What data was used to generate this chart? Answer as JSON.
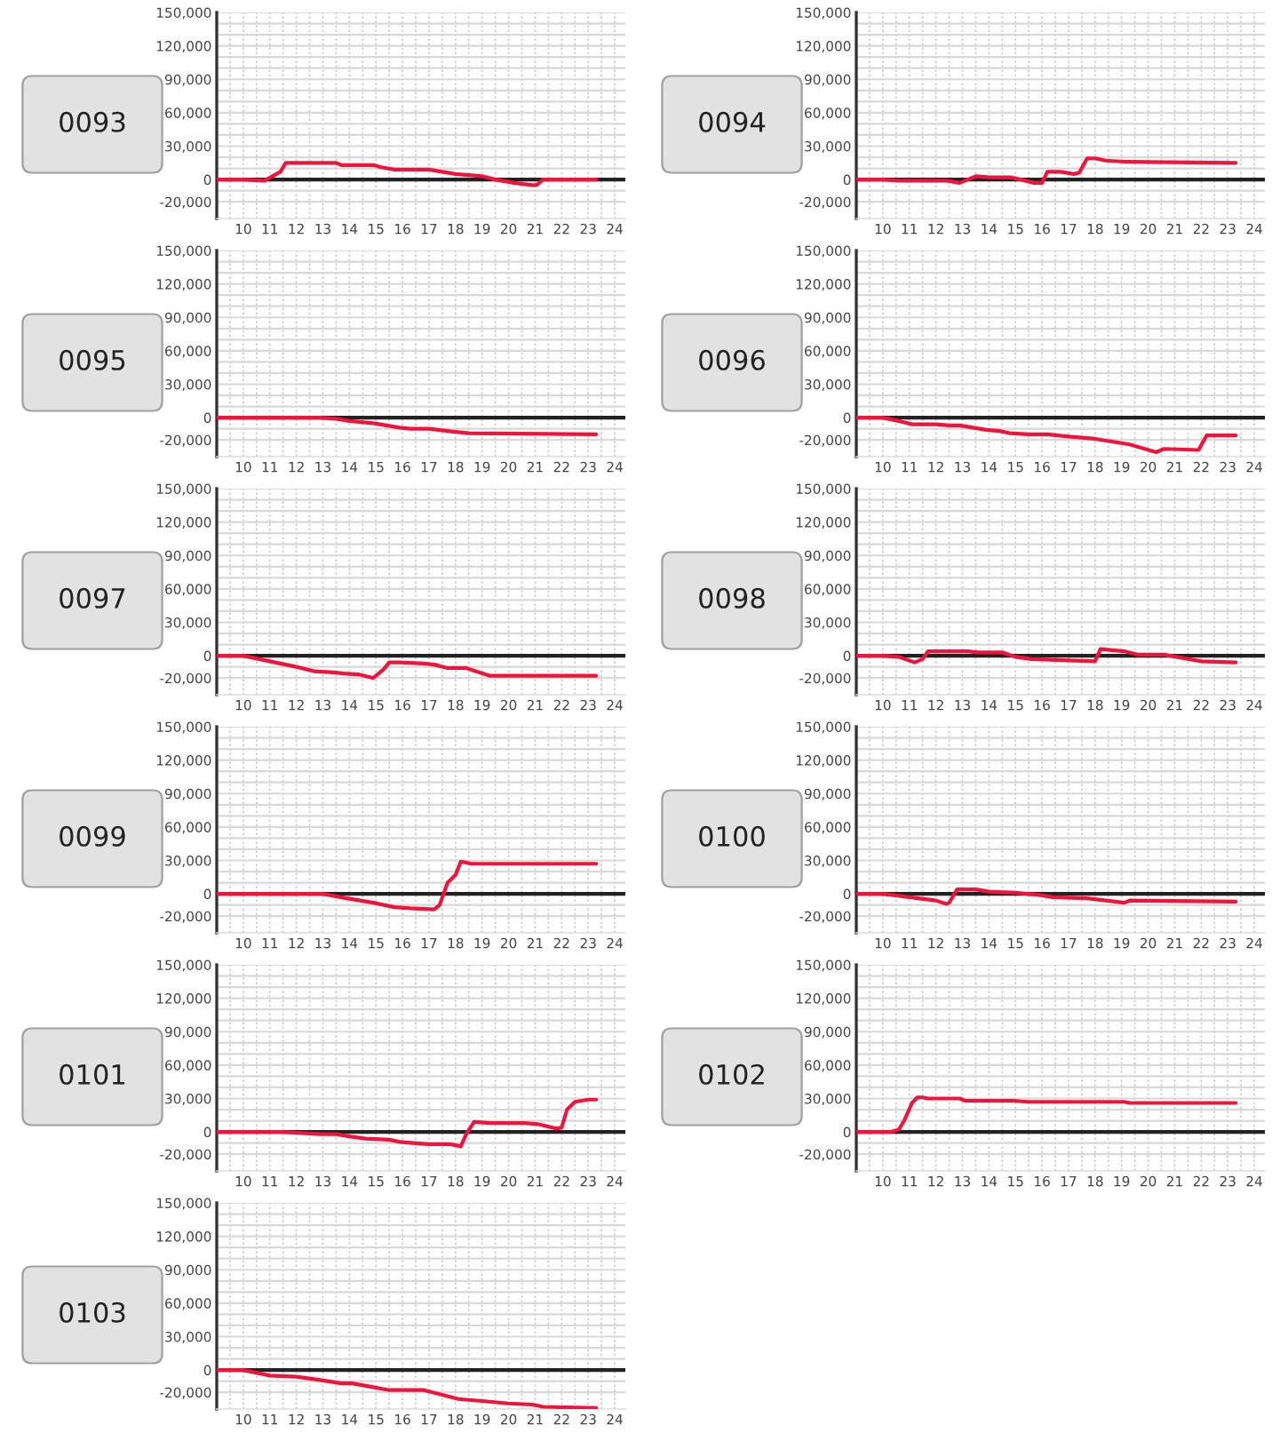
{
  "chart_data": [
    {
      "type": "line",
      "title": "0093",
      "x": [
        9,
        10,
        10.8,
        11.4,
        11.6,
        13.5,
        13.7,
        14.9,
        15.2,
        15.7,
        17,
        17.5,
        18,
        19,
        19.5,
        20.2,
        20.9,
        21.05,
        21.3,
        23.3
      ],
      "values": [
        0,
        0,
        -1000,
        7000,
        15000,
        15000,
        13000,
        13000,
        11000,
        9000,
        9000,
        7000,
        5000,
        3000,
        0,
        -3000,
        -5000,
        -5000,
        0,
        0
      ],
      "color": "#f0143c",
      "xlim": [
        9,
        24.4
      ],
      "xticks": [
        {
          "value": 9.5,
          "label": null
        },
        10,
        {
          "value": 10.5,
          "label": null
        },
        11,
        {
          "value": 11.5,
          "label": null
        },
        12,
        {
          "value": 12.5,
          "label": null
        },
        13,
        {
          "value": 13.5,
          "label": null
        },
        14,
        {
          "value": 14.5,
          "label": null
        },
        15,
        {
          "value": 15.5,
          "label": null
        },
        16,
        {
          "value": 16.5,
          "label": null
        },
        17,
        {
          "value": 17.5,
          "label": null
        },
        18,
        {
          "value": 18.5,
          "label": null
        },
        19,
        {
          "value": 19.5,
          "label": null
        },
        20,
        {
          "value": 20.5,
          "label": null
        },
        21,
        {
          "value": 21.5,
          "label": null
        },
        22,
        {
          "value": 22.5,
          "label": null
        },
        23,
        {
          "value": 23.5,
          "label": null
        },
        24
      ],
      "ylim": [
        -35000,
        150000
      ],
      "yticks": [
        {
          "value": -20000,
          "label": "-20,000"
        },
        {
          "value": -10000,
          "label": null
        },
        0,
        {
          "value": 10000,
          "label": null
        },
        {
          "value": 20000,
          "label": null
        },
        {
          "value": 30000,
          "label": "30,000"
        },
        {
          "value": 40000,
          "label": null
        },
        {
          "value": 50000,
          "label": null
        },
        {
          "value": 60000,
          "label": "60,000"
        },
        {
          "value": 70000,
          "label": null
        },
        {
          "value": 80000,
          "label": null
        },
        {
          "value": 90000,
          "label": "90,000"
        },
        {
          "value": 100000,
          "label": null
        },
        {
          "value": 110000,
          "label": null
        },
        {
          "value": 120000,
          "label": "120,000"
        },
        {
          "value": 130000,
          "label": null
        },
        {
          "value": 140000,
          "label": null
        },
        {
          "value": 150000,
          "label": "150,000"
        }
      ],
      "grid": true,
      "ref_lines": [
        {
          "axis": "y",
          "value": 0,
          "color": "#222222"
        }
      ]
    },
    {
      "type": "line",
      "title": "0094",
      "x": [
        9,
        10,
        10.6,
        12.4,
        12.9,
        13.5,
        14,
        14.8,
        15.2,
        15.7,
        16,
        16.2,
        16.7,
        17.2,
        17.4,
        17.7,
        18,
        18.4,
        19.1,
        23.3
      ],
      "values": [
        0,
        0,
        -1000,
        -1000,
        -3000,
        3000,
        2000,
        2000,
        0,
        -3000,
        -3000,
        7000,
        7000,
        5000,
        6000,
        19000,
        19000,
        17000,
        16000,
        15000
      ],
      "color": "#f0143c",
      "xlim": [
        9,
        24.4
      ],
      "xticks": [
        {
          "value": 9.5,
          "label": null
        },
        10,
        {
          "value": 10.5,
          "label": null
        },
        11,
        {
          "value": 11.5,
          "label": null
        },
        12,
        {
          "value": 12.5,
          "label": null
        },
        13,
        {
          "value": 13.5,
          "label": null
        },
        14,
        {
          "value": 14.5,
          "label": null
        },
        15,
        {
          "value": 15.5,
          "label": null
        },
        16,
        {
          "value": 16.5,
          "label": null
        },
        17,
        {
          "value": 17.5,
          "label": null
        },
        18,
        {
          "value": 18.5,
          "label": null
        },
        19,
        {
          "value": 19.5,
          "label": null
        },
        20,
        {
          "value": 20.5,
          "label": null
        },
        21,
        {
          "value": 21.5,
          "label": null
        },
        22,
        {
          "value": 22.5,
          "label": null
        },
        23,
        {
          "value": 23.5,
          "label": null
        },
        24
      ],
      "ylim": [
        -35000,
        150000
      ],
      "yticks": [
        {
          "value": -20000,
          "label": "-20,000"
        },
        {
          "value": -10000,
          "label": null
        },
        0,
        {
          "value": 10000,
          "label": null
        },
        {
          "value": 20000,
          "label": null
        },
        {
          "value": 30000,
          "label": "30,000"
        },
        {
          "value": 40000,
          "label": null
        },
        {
          "value": 50000,
          "label": null
        },
        {
          "value": 60000,
          "label": "60,000"
        },
        {
          "value": 70000,
          "label": null
        },
        {
          "value": 80000,
          "label": null
        },
        {
          "value": 90000,
          "label": "90,000"
        },
        {
          "value": 100000,
          "label": null
        },
        {
          "value": 110000,
          "label": null
        },
        {
          "value": 120000,
          "label": "120,000"
        },
        {
          "value": 130000,
          "label": null
        },
        {
          "value": 140000,
          "label": null
        },
        {
          "value": 150000,
          "label": "150,000"
        }
      ],
      "grid": true,
      "ref_lines": [
        {
          "axis": "y",
          "value": 0,
          "color": "#222222"
        }
      ]
    },
    {
      "type": "line",
      "title": "0095",
      "x": [
        9,
        10,
        11.2,
        12.9,
        13.5,
        14,
        14.9,
        15.9,
        16.3,
        17,
        17.7,
        18.5,
        23.3
      ],
      "values": [
        0,
        0,
        0,
        0,
        -1000,
        -3000,
        -5000,
        -9000,
        -10000,
        -10000,
        -12000,
        -14000,
        -15000
      ],
      "color": "#f0143c",
      "xlim": [
        9,
        24.4
      ],
      "xticks": [
        {
          "value": 9.5,
          "label": null
        },
        10,
        {
          "value": 10.5,
          "label": null
        },
        11,
        {
          "value": 11.5,
          "label": null
        },
        12,
        {
          "value": 12.5,
          "label": null
        },
        13,
        {
          "value": 13.5,
          "label": null
        },
        14,
        {
          "value": 14.5,
          "label": null
        },
        15,
        {
          "value": 15.5,
          "label": null
        },
        16,
        {
          "value": 16.5,
          "label": null
        },
        17,
        {
          "value": 17.5,
          "label": null
        },
        18,
        {
          "value": 18.5,
          "label": null
        },
        19,
        {
          "value": 19.5,
          "label": null
        },
        20,
        {
          "value": 20.5,
          "label": null
        },
        21,
        {
          "value": 21.5,
          "label": null
        },
        22,
        {
          "value": 22.5,
          "label": null
        },
        23,
        {
          "value": 23.5,
          "label": null
        },
        24
      ],
      "ylim": [
        -35000,
        150000
      ],
      "yticks": [
        {
          "value": -20000,
          "label": "-20,000"
        },
        {
          "value": -10000,
          "label": null
        },
        0,
        {
          "value": 10000,
          "label": null
        },
        {
          "value": 20000,
          "label": null
        },
        {
          "value": 30000,
          "label": "30,000"
        },
        {
          "value": 40000,
          "label": null
        },
        {
          "value": 50000,
          "label": null
        },
        {
          "value": 60000,
          "label": "60,000"
        },
        {
          "value": 70000,
          "label": null
        },
        {
          "value": 80000,
          "label": null
        },
        {
          "value": 90000,
          "label": "90,000"
        },
        {
          "value": 100000,
          "label": null
        },
        {
          "value": 110000,
          "label": null
        },
        {
          "value": 120000,
          "label": "120,000"
        },
        {
          "value": 130000,
          "label": null
        },
        {
          "value": 140000,
          "label": null
        },
        {
          "value": 150000,
          "label": "150,000"
        }
      ],
      "grid": true,
      "ref_lines": [
        {
          "axis": "y",
          "value": 0,
          "color": "#222222"
        }
      ]
    },
    {
      "type": "line",
      "title": "0096",
      "x": [
        9,
        10,
        10.6,
        11.1,
        12,
        12.5,
        12.9,
        13.9,
        14.4,
        14.8,
        15.5,
        16.2,
        16.6,
        17,
        17.5,
        18,
        19.3,
        20.3,
        20.6,
        21.9,
        22.2,
        23.3
      ],
      "values": [
        0,
        0,
        -3000,
        -6000,
        -6000,
        -7000,
        -7000,
        -11000,
        -12000,
        -14000,
        -15000,
        -15000,
        -16000,
        -17000,
        -18000,
        -19000,
        -24000,
        -31000,
        -28000,
        -29000,
        -16000,
        -16000
      ],
      "color": "#f0143c",
      "xlim": [
        9,
        24.4
      ],
      "xticks": [
        {
          "value": 9.5,
          "label": null
        },
        10,
        {
          "value": 10.5,
          "label": null
        },
        11,
        {
          "value": 11.5,
          "label": null
        },
        12,
        {
          "value": 12.5,
          "label": null
        },
        13,
        {
          "value": 13.5,
          "label": null
        },
        14,
        {
          "value": 14.5,
          "label": null
        },
        15,
        {
          "value": 15.5,
          "label": null
        },
        16,
        {
          "value": 16.5,
          "label": null
        },
        17,
        {
          "value": 17.5,
          "label": null
        },
        18,
        {
          "value": 18.5,
          "label": null
        },
        19,
        {
          "value": 19.5,
          "label": null
        },
        20,
        {
          "value": 20.5,
          "label": null
        },
        21,
        {
          "value": 21.5,
          "label": null
        },
        22,
        {
          "value": 22.5,
          "label": null
        },
        23,
        {
          "value": 23.5,
          "label": null
        },
        24
      ],
      "ylim": [
        -35000,
        150000
      ],
      "yticks": [
        {
          "value": -20000,
          "label": "-20,000"
        },
        {
          "value": -10000,
          "label": null
        },
        0,
        {
          "value": 10000,
          "label": null
        },
        {
          "value": 20000,
          "label": null
        },
        {
          "value": 30000,
          "label": "30,000"
        },
        {
          "value": 40000,
          "label": null
        },
        {
          "value": 50000,
          "label": null
        },
        {
          "value": 60000,
          "label": "60,000"
        },
        {
          "value": 70000,
          "label": null
        },
        {
          "value": 80000,
          "label": null
        },
        {
          "value": 90000,
          "label": "90,000"
        },
        {
          "value": 100000,
          "label": null
        },
        {
          "value": 110000,
          "label": null
        },
        {
          "value": 120000,
          "label": "120,000"
        },
        {
          "value": 130000,
          "label": null
        },
        {
          "value": 140000,
          "label": null
        },
        {
          "value": 150000,
          "label": "150,000"
        }
      ],
      "grid": true,
      "ref_lines": [
        {
          "axis": "y",
          "value": 0,
          "color": "#222222"
        }
      ]
    },
    {
      "type": "line",
      "title": "0097",
      "x": [
        9,
        10,
        11,
        12,
        12.7,
        13.4,
        13.8,
        14.4,
        14.9,
        15.3,
        15.5,
        15.9,
        16.8,
        17.2,
        17.7,
        18.4,
        19.3,
        23.3
      ],
      "values": [
        0,
        0,
        -5000,
        -10000,
        -14000,
        -15000,
        -16000,
        -17000,
        -20000,
        -12000,
        -6000,
        -6000,
        -7000,
        -8000,
        -11000,
        -11000,
        -18000,
        -18000
      ],
      "color": "#f0143c",
      "xlim": [
        9,
        24.4
      ],
      "xticks": [
        {
          "value": 9.5,
          "label": null
        },
        10,
        {
          "value": 10.5,
          "label": null
        },
        11,
        {
          "value": 11.5,
          "label": null
        },
        12,
        {
          "value": 12.5,
          "label": null
        },
        13,
        {
          "value": 13.5,
          "label": null
        },
        14,
        {
          "value": 14.5,
          "label": null
        },
        15,
        {
          "value": 15.5,
          "label": null
        },
        16,
        {
          "value": 16.5,
          "label": null
        },
        17,
        {
          "value": 17.5,
          "label": null
        },
        18,
        {
          "value": 18.5,
          "label": null
        },
        19,
        {
          "value": 19.5,
          "label": null
        },
        20,
        {
          "value": 20.5,
          "label": null
        },
        21,
        {
          "value": 21.5,
          "label": null
        },
        22,
        {
          "value": 22.5,
          "label": null
        },
        23,
        {
          "value": 23.5,
          "label": null
        },
        24
      ],
      "ylim": [
        -35000,
        150000
      ],
      "yticks": [
        {
          "value": -20000,
          "label": "-20,000"
        },
        {
          "value": -10000,
          "label": null
        },
        0,
        {
          "value": 10000,
          "label": null
        },
        {
          "value": 20000,
          "label": null
        },
        {
          "value": 30000,
          "label": "30,000"
        },
        {
          "value": 40000,
          "label": null
        },
        {
          "value": 50000,
          "label": null
        },
        {
          "value": 60000,
          "label": "60,000"
        },
        {
          "value": 70000,
          "label": null
        },
        {
          "value": 80000,
          "label": null
        },
        {
          "value": 90000,
          "label": "90,000"
        },
        {
          "value": 100000,
          "label": null
        },
        {
          "value": 110000,
          "label": null
        },
        {
          "value": 120000,
          "label": "120,000"
        },
        {
          "value": 130000,
          "label": null
        },
        {
          "value": 140000,
          "label": null
        },
        {
          "value": 150000,
          "label": "150,000"
        }
      ],
      "grid": true,
      "ref_lines": [
        {
          "axis": "y",
          "value": 0,
          "color": "#222222"
        }
      ]
    },
    {
      "type": "line",
      "title": "0098",
      "x": [
        9,
        10,
        10.6,
        11.2,
        11.5,
        11.7,
        13.2,
        13.6,
        14.5,
        15,
        15.6,
        18,
        18.2,
        19.1,
        19.6,
        20.6,
        21.3,
        22,
        23.3
      ],
      "values": [
        0,
        0,
        -1000,
        -6000,
        -3000,
        4000,
        4000,
        3000,
        3000,
        -1000,
        -3000,
        -5000,
        6000,
        4000,
        1000,
        1000,
        -2000,
        -5000,
        -6000
      ],
      "color": "#f0143c",
      "xlim": [
        9,
        24.4
      ],
      "xticks": [
        {
          "value": 9.5,
          "label": null
        },
        10,
        {
          "value": 10.5,
          "label": null
        },
        11,
        {
          "value": 11.5,
          "label": null
        },
        12,
        {
          "value": 12.5,
          "label": null
        },
        13,
        {
          "value": 13.5,
          "label": null
        },
        14,
        {
          "value": 14.5,
          "label": null
        },
        15,
        {
          "value": 15.5,
          "label": null
        },
        16,
        {
          "value": 16.5,
          "label": null
        },
        17,
        {
          "value": 17.5,
          "label": null
        },
        18,
        {
          "value": 18.5,
          "label": null
        },
        19,
        {
          "value": 19.5,
          "label": null
        },
        20,
        {
          "value": 20.5,
          "label": null
        },
        21,
        {
          "value": 21.5,
          "label": null
        },
        22,
        {
          "value": 22.5,
          "label": null
        },
        23,
        {
          "value": 23.5,
          "label": null
        },
        24
      ],
      "ylim": [
        -35000,
        150000
      ],
      "yticks": [
        {
          "value": -20000,
          "label": "-20,000"
        },
        {
          "value": -10000,
          "label": null
        },
        0,
        {
          "value": 10000,
          "label": null
        },
        {
          "value": 20000,
          "label": null
        },
        {
          "value": 30000,
          "label": "30,000"
        },
        {
          "value": 40000,
          "label": null
        },
        {
          "value": 50000,
          "label": null
        },
        {
          "value": 60000,
          "label": "60,000"
        },
        {
          "value": 70000,
          "label": null
        },
        {
          "value": 80000,
          "label": null
        },
        {
          "value": 90000,
          "label": "90,000"
        },
        {
          "value": 100000,
          "label": null
        },
        {
          "value": 110000,
          "label": null
        },
        {
          "value": 120000,
          "label": "120,000"
        },
        {
          "value": 130000,
          "label": null
        },
        {
          "value": 140000,
          "label": null
        },
        {
          "value": 150000,
          "label": "150,000"
        }
      ],
      "grid": true,
      "ref_lines": [
        {
          "axis": "y",
          "value": 0,
          "color": "#222222"
        }
      ]
    },
    {
      "type": "line",
      "title": "0099",
      "x": [
        9,
        13,
        13.9,
        14.9,
        15.7,
        16.3,
        17.2,
        17.4,
        17.7,
        18,
        18.2,
        18.6,
        23.3
      ],
      "values": [
        0,
        0,
        -4000,
        -8000,
        -12000,
        -13000,
        -14000,
        -10000,
        10000,
        17000,
        29000,
        27000,
        27000
      ],
      "color": "#f0143c",
      "xlim": [
        9,
        24.4
      ],
      "xticks": [
        {
          "value": 9.5,
          "label": null
        },
        10,
        {
          "value": 10.5,
          "label": null
        },
        11,
        {
          "value": 11.5,
          "label": null
        },
        12,
        {
          "value": 12.5,
          "label": null
        },
        13,
        {
          "value": 13.5,
          "label": null
        },
        14,
        {
          "value": 14.5,
          "label": null
        },
        15,
        {
          "value": 15.5,
          "label": null
        },
        16,
        {
          "value": 16.5,
          "label": null
        },
        17,
        {
          "value": 17.5,
          "label": null
        },
        18,
        {
          "value": 18.5,
          "label": null
        },
        19,
        {
          "value": 19.5,
          "label": null
        },
        20,
        {
          "value": 20.5,
          "label": null
        },
        21,
        {
          "value": 21.5,
          "label": null
        },
        22,
        {
          "value": 22.5,
          "label": null
        },
        23,
        {
          "value": 23.5,
          "label": null
        },
        24
      ],
      "ylim": [
        -35000,
        150000
      ],
      "yticks": [
        {
          "value": -20000,
          "label": "-20,000"
        },
        {
          "value": -10000,
          "label": null
        },
        0,
        {
          "value": 10000,
          "label": null
        },
        {
          "value": 20000,
          "label": null
        },
        {
          "value": 30000,
          "label": "30,000"
        },
        {
          "value": 40000,
          "label": null
        },
        {
          "value": 50000,
          "label": null
        },
        {
          "value": 60000,
          "label": "60,000"
        },
        {
          "value": 70000,
          "label": null
        },
        {
          "value": 80000,
          "label": null
        },
        {
          "value": 90000,
          "label": "90,000"
        },
        {
          "value": 100000,
          "label": null
        },
        {
          "value": 110000,
          "label": null
        },
        {
          "value": 120000,
          "label": "120,000"
        },
        {
          "value": 130000,
          "label": null
        },
        {
          "value": 140000,
          "label": null
        },
        {
          "value": 150000,
          "label": "150,000"
        }
      ],
      "grid": true,
      "ref_lines": [
        {
          "axis": "y",
          "value": 0,
          "color": "#222222"
        }
      ]
    },
    {
      "type": "line",
      "title": "0100",
      "x": [
        9,
        10,
        11,
        12,
        12.4,
        12.5,
        12.8,
        13.5,
        14,
        15,
        15.9,
        16.4,
        17.7,
        19.1,
        19.3,
        23.3
      ],
      "values": [
        0,
        0,
        -3000,
        -6000,
        -9000,
        -8000,
        4000,
        4000,
        2000,
        1000,
        -1000,
        -3000,
        -4000,
        -8000,
        -6000,
        -7000
      ],
      "color": "#f0143c",
      "xlim": [
        9,
        24.4
      ],
      "xticks": [
        {
          "value": 9.5,
          "label": null
        },
        10,
        {
          "value": 10.5,
          "label": null
        },
        11,
        {
          "value": 11.5,
          "label": null
        },
        12,
        {
          "value": 12.5,
          "label": null
        },
        13,
        {
          "value": 13.5,
          "label": null
        },
        14,
        {
          "value": 14.5,
          "label": null
        },
        15,
        {
          "value": 15.5,
          "label": null
        },
        16,
        {
          "value": 16.5,
          "label": null
        },
        17,
        {
          "value": 17.5,
          "label": null
        },
        18,
        {
          "value": 18.5,
          "label": null
        },
        19,
        {
          "value": 19.5,
          "label": null
        },
        20,
        {
          "value": 20.5,
          "label": null
        },
        21,
        {
          "value": 21.5,
          "label": null
        },
        22,
        {
          "value": 22.5,
          "label": null
        },
        23,
        {
          "value": 23.5,
          "label": null
        },
        24
      ],
      "ylim": [
        -35000,
        150000
      ],
      "yticks": [
        {
          "value": -20000,
          "label": "-20,000"
        },
        {
          "value": -10000,
          "label": null
        },
        0,
        {
          "value": 10000,
          "label": null
        },
        {
          "value": 20000,
          "label": null
        },
        {
          "value": 30000,
          "label": "30,000"
        },
        {
          "value": 40000,
          "label": null
        },
        {
          "value": 50000,
          "label": null
        },
        {
          "value": 60000,
          "label": "60,000"
        },
        {
          "value": 70000,
          "label": null
        },
        {
          "value": 80000,
          "label": null
        },
        {
          "value": 90000,
          "label": "90,000"
        },
        {
          "value": 100000,
          "label": null
        },
        {
          "value": 110000,
          "label": null
        },
        {
          "value": 120000,
          "label": "120,000"
        },
        {
          "value": 130000,
          "label": null
        },
        {
          "value": 140000,
          "label": null
        },
        {
          "value": 150000,
          "label": "150,000"
        }
      ],
      "grid": true,
      "ref_lines": [
        {
          "axis": "y",
          "value": 0,
          "color": "#222222"
        }
      ]
    },
    {
      "type": "line",
      "title": "0101",
      "x": [
        9,
        11.5,
        12.9,
        13.5,
        14,
        14.6,
        15.5,
        15.9,
        16.4,
        17,
        17.8,
        18.2,
        18.4,
        18.7,
        19.3,
        20.6,
        21.1,
        21.8,
        22,
        22.2,
        22.5,
        23,
        23.3
      ],
      "values": [
        0,
        0,
        -2000,
        -2000,
        -4000,
        -6000,
        -7000,
        -9000,
        -10000,
        -11000,
        -11000,
        -13000,
        -2000,
        9000,
        8000,
        8000,
        7000,
        3000,
        4000,
        20000,
        27000,
        29000,
        29000
      ],
      "color": "#f0143c",
      "xlim": [
        9,
        24.4
      ],
      "xticks": [
        {
          "value": 9.5,
          "label": null
        },
        10,
        {
          "value": 10.5,
          "label": null
        },
        11,
        {
          "value": 11.5,
          "label": null
        },
        12,
        {
          "value": 12.5,
          "label": null
        },
        13,
        {
          "value": 13.5,
          "label": null
        },
        14,
        {
          "value": 14.5,
          "label": null
        },
        15,
        {
          "value": 15.5,
          "label": null
        },
        16,
        {
          "value": 16.5,
          "label": null
        },
        17,
        {
          "value": 17.5,
          "label": null
        },
        18,
        {
          "value": 18.5,
          "label": null
        },
        19,
        {
          "value": 19.5,
          "label": null
        },
        20,
        {
          "value": 20.5,
          "label": null
        },
        21,
        {
          "value": 21.5,
          "label": null
        },
        22,
        {
          "value": 22.5,
          "label": null
        },
        23,
        {
          "value": 23.5,
          "label": null
        },
        24
      ],
      "ylim": [
        -35000,
        150000
      ],
      "yticks": [
        {
          "value": -20000,
          "label": "-20,000"
        },
        {
          "value": -10000,
          "label": null
        },
        0,
        {
          "value": 10000,
          "label": null
        },
        {
          "value": 20000,
          "label": null
        },
        {
          "value": 30000,
          "label": "30,000"
        },
        {
          "value": 40000,
          "label": null
        },
        {
          "value": 50000,
          "label": null
        },
        {
          "value": 60000,
          "label": "60,000"
        },
        {
          "value": 70000,
          "label": null
        },
        {
          "value": 80000,
          "label": null
        },
        {
          "value": 90000,
          "label": "90,000"
        },
        {
          "value": 100000,
          "label": null
        },
        {
          "value": 110000,
          "label": null
        },
        {
          "value": 120000,
          "label": "120,000"
        },
        {
          "value": 130000,
          "label": null
        },
        {
          "value": 140000,
          "label": null
        },
        {
          "value": 150000,
          "label": "150,000"
        }
      ],
      "grid": true,
      "ref_lines": [
        {
          "axis": "y",
          "value": 0,
          "color": "#222222"
        }
      ]
    },
    {
      "type": "line",
      "title": "0102",
      "x": [
        9,
        10.3,
        10.6,
        10.8,
        11.1,
        11.3,
        11.5,
        11.7,
        12.9,
        13.1,
        14.9,
        15.5,
        19.1,
        19.3,
        23.3
      ],
      "values": [
        0,
        0,
        2000,
        10000,
        26000,
        31000,
        31000,
        30000,
        30000,
        28000,
        28000,
        27000,
        27000,
        26000,
        26000
      ],
      "color": "#f0143c",
      "xlim": [
        9,
        24.4
      ],
      "xticks": [
        {
          "value": 9.5,
          "label": null
        },
        10,
        {
          "value": 10.5,
          "label": null
        },
        11,
        {
          "value": 11.5,
          "label": null
        },
        12,
        {
          "value": 12.5,
          "label": null
        },
        13,
        {
          "value": 13.5,
          "label": null
        },
        14,
        {
          "value": 14.5,
          "label": null
        },
        15,
        {
          "value": 15.5,
          "label": null
        },
        16,
        {
          "value": 16.5,
          "label": null
        },
        17,
        {
          "value": 17.5,
          "label": null
        },
        18,
        {
          "value": 18.5,
          "label": null
        },
        19,
        {
          "value": 19.5,
          "label": null
        },
        20,
        {
          "value": 20.5,
          "label": null
        },
        21,
        {
          "value": 21.5,
          "label": null
        },
        22,
        {
          "value": 22.5,
          "label": null
        },
        23,
        {
          "value": 23.5,
          "label": null
        },
        24
      ],
      "ylim": [
        -35000,
        150000
      ],
      "yticks": [
        {
          "value": -20000,
          "label": "-20,000"
        },
        {
          "value": -10000,
          "label": null
        },
        0,
        {
          "value": 10000,
          "label": null
        },
        {
          "value": 20000,
          "label": null
        },
        {
          "value": 30000,
          "label": "30,000"
        },
        {
          "value": 40000,
          "label": null
        },
        {
          "value": 50000,
          "label": null
        },
        {
          "value": 60000,
          "label": "60,000"
        },
        {
          "value": 70000,
          "label": null
        },
        {
          "value": 80000,
          "label": null
        },
        {
          "value": 90000,
          "label": "90,000"
        },
        {
          "value": 100000,
          "label": null
        },
        {
          "value": 110000,
          "label": null
        },
        {
          "value": 120000,
          "label": "120,000"
        },
        {
          "value": 130000,
          "label": null
        },
        {
          "value": 140000,
          "label": null
        },
        {
          "value": 150000,
          "label": "150,000"
        }
      ],
      "grid": true,
      "ref_lines": [
        {
          "axis": "y",
          "value": 0,
          "color": "#222222"
        }
      ]
    },
    {
      "type": "line",
      "title": "0103",
      "x": [
        9,
        10,
        10.6,
        11,
        12,
        12.9,
        13.7,
        14.1,
        14.8,
        15.5,
        16.8,
        17.3,
        18.1,
        19.1,
        20,
        20.9,
        21.3,
        23.3
      ],
      "values": [
        0,
        0,
        -3000,
        -5000,
        -6000,
        -9000,
        -12000,
        -12000,
        -15000,
        -18000,
        -18000,
        -21000,
        -26000,
        -28000,
        -30000,
        -31000,
        -33000,
        -34000
      ],
      "color": "#f0143c",
      "xlim": [
        9,
        24.4
      ],
      "xticks": [
        {
          "value": 9.5,
          "label": null
        },
        10,
        {
          "value": 10.5,
          "label": null
        },
        11,
        {
          "value": 11.5,
          "label": null
        },
        12,
        {
          "value": 12.5,
          "label": null
        },
        13,
        {
          "value": 13.5,
          "label": null
        },
        14,
        {
          "value": 14.5,
          "label": null
        },
        15,
        {
          "value": 15.5,
          "label": null
        },
        16,
        {
          "value": 16.5,
          "label": null
        },
        17,
        {
          "value": 17.5,
          "label": null
        },
        18,
        {
          "value": 18.5,
          "label": null
        },
        19,
        {
          "value": 19.5,
          "label": null
        },
        20,
        {
          "value": 20.5,
          "label": null
        },
        21,
        {
          "value": 21.5,
          "label": null
        },
        22,
        {
          "value": 22.5,
          "label": null
        },
        23,
        {
          "value": 23.5,
          "label": null
        },
        24
      ],
      "ylim": [
        -35000,
        150000
      ],
      "yticks": [
        {
          "value": -20000,
          "label": "-20,000"
        },
        {
          "value": -10000,
          "label": null
        },
        0,
        {
          "value": 10000,
          "label": null
        },
        {
          "value": 20000,
          "label": null
        },
        {
          "value": 30000,
          "label": "30,000"
        },
        {
          "value": 40000,
          "label": null
        },
        {
          "value": 50000,
          "label": null
        },
        {
          "value": 60000,
          "label": "60,000"
        },
        {
          "value": 70000,
          "label": null
        },
        {
          "value": 80000,
          "label": null
        },
        {
          "value": 90000,
          "label": "90,000"
        },
        {
          "value": 100000,
          "label": null
        },
        {
          "value": 110000,
          "label": null
        },
        {
          "value": 120000,
          "label": "120,000"
        },
        {
          "value": 130000,
          "label": null
        },
        {
          "value": 140000,
          "label": null
        },
        {
          "value": 150000,
          "label": "150,000"
        }
      ],
      "grid": true,
      "ref_lines": [
        {
          "axis": "y",
          "value": 0,
          "color": "#222222"
        }
      ]
    }
  ]
}
